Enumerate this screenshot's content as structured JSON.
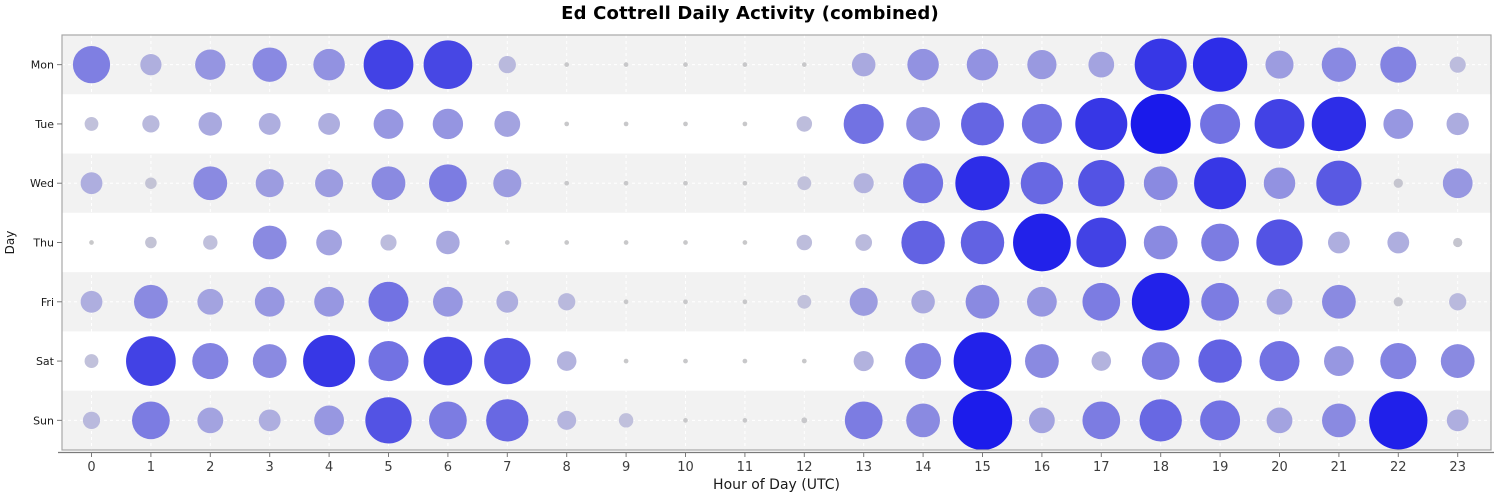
{
  "title": "Ed Cottrell Daily Activity (combined)",
  "chart_data": {
    "type": "scatter",
    "subtype": "punchcard-bubble",
    "title": "Ed Cottrell Daily Activity (combined)",
    "xlabel": "Hour of Day (UTC)",
    "ylabel": "Day",
    "x": [
      0,
      1,
      2,
      3,
      4,
      5,
      6,
      7,
      8,
      9,
      10,
      11,
      12,
      13,
      14,
      15,
      16,
      17,
      18,
      19,
      20,
      21,
      22,
      23
    ],
    "categories": [
      "Mon",
      "Tue",
      "Wed",
      "Thu",
      "Fri",
      "Sat",
      "Sun"
    ],
    "value_scale": {
      "min": 0,
      "max": 10,
      "encoding": "activity level encoded by bubble size and color from light gray (low) to pure blue (high)"
    },
    "series": [
      {
        "name": "Mon",
        "values": [
          6,
          3.2,
          4.8,
          5.5,
          5,
          8.2,
          8,
          2.5,
          0.3,
          0.3,
          0.3,
          0.3,
          0.3,
          3.6,
          5,
          5,
          4.6,
          4,
          8.6,
          9,
          4.4,
          5.5,
          5.8,
          2.3
        ]
      },
      {
        "name": "Tue",
        "values": [
          1.9,
          2.5,
          3.6,
          3.3,
          3.3,
          4.7,
          4.8,
          4,
          0.3,
          0.3,
          0.3,
          0.3,
          2.2,
          6.5,
          5.4,
          7,
          6.5,
          8.6,
          10,
          6.5,
          8.2,
          9,
          4.7,
          3.4
        ]
      },
      {
        "name": "Wed",
        "values": [
          3.3,
          1.5,
          5.4,
          4.4,
          4.4,
          5.4,
          6.1,
          4.4,
          0.3,
          0.3,
          0.3,
          0.3,
          1.9,
          3,
          6.5,
          9,
          6.9,
          7.6,
          5.4,
          8.6,
          5,
          7.4,
          1.1,
          4.7
        ]
      },
      {
        "name": "Thu",
        "values": [
          0.3,
          1.5,
          2,
          5.4,
          4,
          2.3,
          3.6,
          0.3,
          0.3,
          0.3,
          0.3,
          0.3,
          2.2,
          2.4,
          7.1,
          7.1,
          9.6,
          8.2,
          5.4,
          6.1,
          7.6,
          3.3,
          3.3,
          1.1
        ]
      },
      {
        "name": "Fri",
        "values": [
          3.3,
          5.4,
          4,
          4.7,
          4.7,
          6.5,
          4.7,
          3.3,
          2.5,
          0.3,
          0.3,
          0.3,
          1.9,
          4.4,
          3.6,
          5.4,
          4.7,
          6.1,
          9.6,
          6.1,
          4,
          5.4,
          1.1,
          2.5
        ]
      },
      {
        "name": "Sat",
        "values": [
          1.9,
          8.2,
          5.8,
          5.4,
          8.6,
          6.5,
          8,
          7.6,
          2.9,
          0.3,
          0.3,
          0.3,
          0.3,
          3,
          5.8,
          9.6,
          5.4,
          2.9,
          6.1,
          7.1,
          6.5,
          4.7,
          5.8,
          5.4
        ]
      },
      {
        "name": "Sun",
        "values": [
          2.5,
          6.1,
          4,
          3.3,
          4.7,
          7.6,
          6.1,
          6.9,
          2.8,
          2,
          0.3,
          0.3,
          0.5,
          6.1,
          5.4,
          9.9,
          4,
          6.1,
          6.9,
          6.5,
          4,
          5.4,
          9.7,
          3.3
        ]
      }
    ],
    "colors": {
      "value_ramp_low": "#c9c9c9",
      "value_ramp_mid": "#7f7fe2",
      "value_ramp_high": "#1a1aeb",
      "band_shaded": "#f2f2f2",
      "band_plain": "#ffffff",
      "gridline": "#ffffff",
      "plot_border": "#a8a8a8",
      "axis_line": "#7a7a7a",
      "tick_label": "#3c3c3c",
      "axis_title": "#1a1a1a"
    },
    "grid": "dashed white vertical per hour and horizontal per day row",
    "legend": "none"
  }
}
